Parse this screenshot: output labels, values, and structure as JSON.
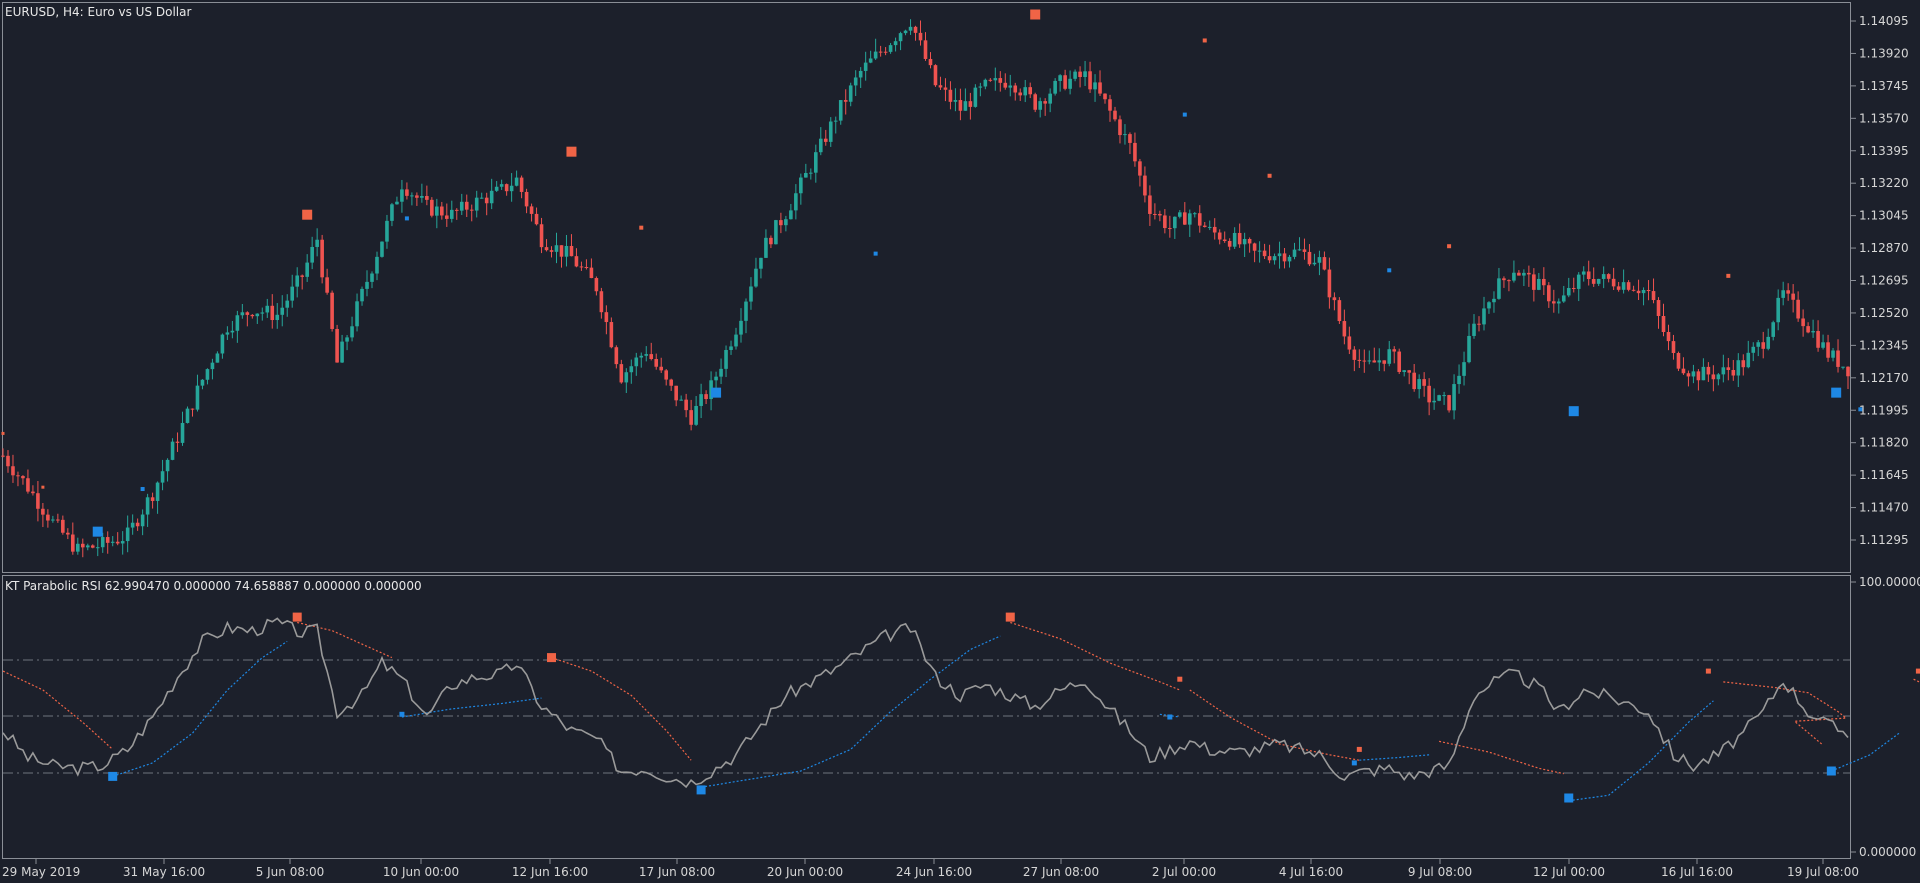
{
  "main_chart": {
    "title": "EURUSD, H4:  Euro vs US Dollar",
    "price_labels": [
      "1.14095",
      "1.13920",
      "1.13745",
      "1.13570",
      "1.13395",
      "1.13220",
      "1.13045",
      "1.12870",
      "1.12695",
      "1.12520",
      "1.12345",
      "1.12170",
      "1.11995",
      "1.11820",
      "1.11645",
      "1.11470",
      "1.11295"
    ]
  },
  "indicator": {
    "title": "KT Parabolic RSI 62.990470 0.000000 74.658887 0.000000 0.000000",
    "scale_labels": [
      "100.000000",
      "0.000000"
    ]
  },
  "time_labels": [
    "29 May 2019",
    "31 May 16:00",
    "5 Jun 08:00",
    "10 Jun 00:00",
    "12 Jun 16:00",
    "17 Jun 08:00",
    "20 Jun 00:00",
    "24 Jun 16:00",
    "27 Jun 08:00",
    "2 Jul 00:00",
    "4 Jul 16:00",
    "9 Jul 08:00",
    "12 Jul 00:00",
    "16 Jul 16:00",
    "19 Jul 08:00"
  ],
  "colors": {
    "background": "#1c202b",
    "bull": "#26a69a",
    "bear": "#ef5350",
    "rsi_line": "#9a9a9a",
    "sar_up": "#1e88e5",
    "sar_down": "#f06446",
    "text": "#d6d6d6"
  },
  "chart_data": [
    {
      "type": "candlestick",
      "title": "EURUSD, H4:  Euro vs US Dollar",
      "y_ticks": [
        1.14095,
        1.1392,
        1.13745,
        1.1357,
        1.13395,
        1.1322,
        1.13045,
        1.1287,
        1.12695,
        1.1252,
        1.12345,
        1.1217,
        1.11995,
        1.1182,
        1.11645,
        1.1147,
        1.11295
      ],
      "x_ticks": [
        "29 May 2019",
        "31 May 16:00",
        "5 Jun 08:00",
        "10 Jun 00:00",
        "12 Jun 16:00",
        "17 Jun 08:00",
        "20 Jun 00:00",
        "24 Jun 16:00",
        "27 Jun 08:00",
        "2 Jul 00:00",
        "4 Jul 16:00",
        "9 Jul 08:00",
        "12 Jul 00:00",
        "16 Jul 16:00",
        "19 Jul 08:00"
      ],
      "close_path": [
        [
          0,
          1.1175
        ],
        [
          5,
          1.1158
        ],
        [
          10,
          1.1139
        ],
        [
          15,
          1.1124
        ],
        [
          20,
          1.1127
        ],
        [
          25,
          1.1132
        ],
        [
          30,
          1.1155
        ],
        [
          35,
          1.1185
        ],
        [
          40,
          1.1216
        ],
        [
          45,
          1.1245
        ],
        [
          50,
          1.1254
        ],
        [
          55,
          1.1251
        ],
        [
          60,
          1.1272
        ],
        [
          63,
          1.1292
        ],
        [
          67,
          1.1225
        ],
        [
          72,
          1.1262
        ],
        [
          76,
          1.1292
        ],
        [
          80,
          1.1322
        ],
        [
          85,
          1.1309
        ],
        [
          90,
          1.1305
        ],
        [
          95,
          1.1312
        ],
        [
          100,
          1.1318
        ],
        [
          103,
          1.1324
        ],
        [
          108,
          1.1292
        ],
        [
          114,
          1.1282
        ],
        [
          119,
          1.1266
        ],
        [
          124,
          1.1218
        ],
        [
          129,
          1.1232
        ],
        [
          133,
          1.1214
        ],
        [
          138,
          1.1196
        ],
        [
          142,
          1.1212
        ],
        [
          147,
          1.1244
        ],
        [
          152,
          1.1285
        ],
        [
          157,
          1.1306
        ],
        [
          162,
          1.1331
        ],
        [
          167,
          1.1358
        ],
        [
          172,
          1.1382
        ],
        [
          177,
          1.1396
        ],
        [
          182,
          1.141
        ],
        [
          187,
          1.1375
        ],
        [
          192,
          1.1362
        ],
        [
          197,
          1.1374
        ],
        [
          202,
          1.1378
        ],
        [
          207,
          1.1365
        ],
        [
          212,
          1.1376
        ],
        [
          217,
          1.138
        ],
        [
          221,
          1.1365
        ],
        [
          226,
          1.1342
        ],
        [
          230,
          1.1309
        ],
        [
          234,
          1.1298
        ],
        [
          238,
          1.1306
        ],
        [
          242,
          1.1296
        ],
        [
          247,
          1.1291
        ],
        [
          251,
          1.1284
        ],
        [
          256,
          1.1284
        ],
        [
          260,
          1.1285
        ],
        [
          264,
          1.128
        ],
        [
          269,
          1.124
        ],
        [
          273,
          1.1222
        ],
        [
          278,
          1.123
        ],
        [
          282,
          1.1218
        ],
        [
          286,
          1.1206
        ],
        [
          290,
          1.1203
        ],
        [
          295,
          1.1244
        ],
        [
          299,
          1.1264
        ],
        [
          303,
          1.1276
        ],
        [
          308,
          1.1266
        ],
        [
          312,
          1.1257
        ],
        [
          317,
          1.1272
        ],
        [
          321,
          1.127
        ],
        [
          326,
          1.1268
        ],
        [
          330,
          1.1263
        ],
        [
          335,
          1.1228
        ],
        [
          339,
          1.1219
        ],
        [
          344,
          1.1219
        ],
        [
          349,
          1.1225
        ],
        [
          353,
          1.1237
        ],
        [
          357,
          1.1262
        ],
        [
          362,
          1.1245
        ],
        [
          366,
          1.123
        ],
        [
          370,
          1.1222
        ]
      ]
    },
    {
      "type": "line",
      "title": "KT Parabolic RSI 62.990470 0.000000 74.658887 0.000000 0.000000",
      "ylim": [
        0,
        100
      ],
      "levels": [
        30,
        50,
        70
      ],
      "series": [
        {
          "values": [
            [
              0,
              45
            ],
            [
              5,
              35
            ],
            [
              10,
              32
            ],
            [
              15,
              31
            ],
            [
              20,
              32
            ],
            [
              25,
              38
            ],
            [
              30,
              50
            ],
            [
              35,
              65
            ],
            [
              40,
              78
            ],
            [
              45,
              83
            ],
            [
              50,
              82
            ],
            [
              55,
              85
            ],
            [
              60,
              81
            ],
            [
              63,
              82
            ],
            [
              67,
              52
            ],
            [
              72,
              58
            ],
            [
              76,
              70
            ],
            [
              80,
              64
            ],
            [
              85,
              50
            ],
            [
              90,
              62
            ],
            [
              95,
              65
            ],
            [
              100,
              66
            ],
            [
              103,
              70
            ],
            [
              108,
              54
            ],
            [
              114,
              45
            ],
            [
              119,
              42
            ],
            [
              124,
              30
            ],
            [
              129,
              31
            ],
            [
              133,
              28
            ],
            [
              138,
              26
            ],
            [
              142,
              30
            ],
            [
              147,
              36
            ],
            [
              152,
              47
            ],
            [
              157,
              58
            ],
            [
              162,
              63
            ],
            [
              167,
              68
            ],
            [
              172,
              74
            ],
            [
              177,
              80
            ],
            [
              182,
              83
            ],
            [
              187,
              65
            ],
            [
              192,
              58
            ],
            [
              197,
              62
            ],
            [
              202,
              58
            ],
            [
              207,
              54
            ],
            [
              212,
              60
            ],
            [
              217,
              64
            ],
            [
              221,
              55
            ],
            [
              226,
              45
            ],
            [
              230,
              35
            ],
            [
              234,
              38
            ],
            [
              238,
              41
            ],
            [
              242,
              38
            ],
            [
              247,
              37
            ],
            [
              251,
              38
            ],
            [
              256,
              40
            ],
            [
              260,
              38
            ],
            [
              264,
              36
            ],
            [
              269,
              28
            ],
            [
              273,
              30
            ],
            [
              278,
              31
            ],
            [
              282,
              28
            ],
            [
              286,
              30
            ],
            [
              290,
              32
            ],
            [
              295,
              58
            ],
            [
              299,
              63
            ],
            [
              303,
              66
            ],
            [
              308,
              61
            ],
            [
              312,
              52
            ],
            [
              317,
              60
            ],
            [
              321,
              58
            ],
            [
              326,
              55
            ],
            [
              330,
              52
            ],
            [
              335,
              36
            ],
            [
              339,
              32
            ],
            [
              344,
              36
            ],
            [
              349,
              44
            ],
            [
              353,
              52
            ],
            [
              357,
              64
            ],
            [
              362,
              52
            ],
            [
              366,
              47
            ],
            [
              370,
              44
            ]
          ]
        }
      ]
    }
  ]
}
